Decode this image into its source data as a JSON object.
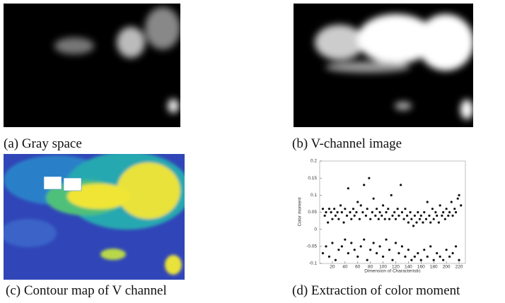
{
  "captions": {
    "a": "(a) Gray space",
    "b": "(b) V-channel image",
    "c": "(c) Contour map of V channel",
    "d": "(d) Extraction of color moment"
  },
  "chart_data": {
    "type": "scatter",
    "xlabel": "Dimension of Characteristic",
    "ylabel": "Color moment",
    "color": "#111111",
    "xlim": [
      0,
      230
    ],
    "ylim": [
      -0.1,
      0.2
    ],
    "xticks": [
      20,
      40,
      60,
      80,
      100,
      120,
      140,
      160,
      180,
      200,
      220
    ],
    "yticks": [
      -0.1,
      -0.05,
      0,
      0.05,
      0.1,
      0.15,
      0.2
    ],
    "x": [
      5,
      8,
      10,
      13,
      15,
      18,
      20,
      23,
      25,
      28,
      30,
      33,
      35,
      38,
      40,
      43,
      45,
      48,
      50,
      53,
      55,
      58,
      60,
      63,
      65,
      68,
      70,
      73,
      75,
      78,
      80,
      83,
      85,
      88,
      90,
      93,
      95,
      98,
      100,
      103,
      105,
      108,
      110,
      113,
      115,
      118,
      120,
      123,
      125,
      128,
      130,
      133,
      135,
      138,
      140,
      143,
      145,
      148,
      150,
      153,
      155,
      158,
      160,
      163,
      165,
      168,
      170,
      173,
      175,
      178,
      180,
      183,
      185,
      188,
      190,
      193,
      195,
      198,
      200,
      203,
      205,
      208,
      210,
      213,
      215,
      218,
      220,
      223,
      5,
      10,
      15,
      20,
      25,
      30,
      35,
      40,
      45,
      50,
      55,
      60,
      65,
      70,
      75,
      80,
      85,
      90,
      95,
      100,
      105,
      110,
      115,
      120,
      125,
      130,
      135,
      140,
      145,
      150,
      155,
      160,
      165,
      170,
      175,
      180,
      185,
      190,
      195,
      200,
      205,
      210,
      215,
      220
    ],
    "values": [
      0.06,
      0.04,
      0.05,
      0.02,
      0.06,
      0.05,
      0.03,
      0.06,
      0.04,
      0.05,
      0.03,
      0.07,
      0.05,
      0.02,
      0.06,
      0.04,
      0.12,
      0.05,
      0.03,
      0.06,
      0.04,
      0.05,
      0.08,
      0.03,
      0.07,
      0.05,
      0.13,
      0.04,
      0.06,
      0.15,
      0.03,
      0.05,
      0.09,
      0.04,
      0.06,
      0.03,
      0.05,
      0.04,
      0.07,
      0.03,
      0.05,
      0.06,
      0.03,
      0.1,
      0.04,
      0.05,
      0.03,
      0.06,
      0.04,
      0.13,
      0.05,
      0.03,
      0.06,
      0.04,
      0.02,
      0.05,
      0.03,
      0.01,
      0.04,
      0.02,
      0.05,
      0.03,
      0.04,
      0.02,
      0.05,
      0.03,
      0.08,
      0.04,
      0.02,
      0.06,
      0.03,
      0.05,
      0.04,
      0.02,
      0.07,
      0.04,
      0.05,
      0.03,
      0.06,
      0.04,
      0.05,
      0.08,
      0.04,
      0.06,
      0.05,
      0.09,
      0.1,
      0.07,
      -0.07,
      -0.05,
      -0.08,
      -0.04,
      -0.09,
      -0.06,
      -0.05,
      -0.03,
      -0.07,
      -0.04,
      -0.06,
      -0.08,
      -0.05,
      -0.03,
      -0.09,
      -0.06,
      -0.04,
      -0.07,
      -0.05,
      -0.08,
      -0.03,
      -0.06,
      -0.09,
      -0.04,
      -0.07,
      -0.05,
      -0.08,
      -0.06,
      -0.09,
      -0.08,
      -0.07,
      -0.09,
      -0.06,
      -0.08,
      -0.05,
      -0.09,
      -0.07,
      -0.08,
      -0.09,
      -0.06,
      -0.08,
      -0.07,
      -0.05,
      -0.09
    ]
  }
}
